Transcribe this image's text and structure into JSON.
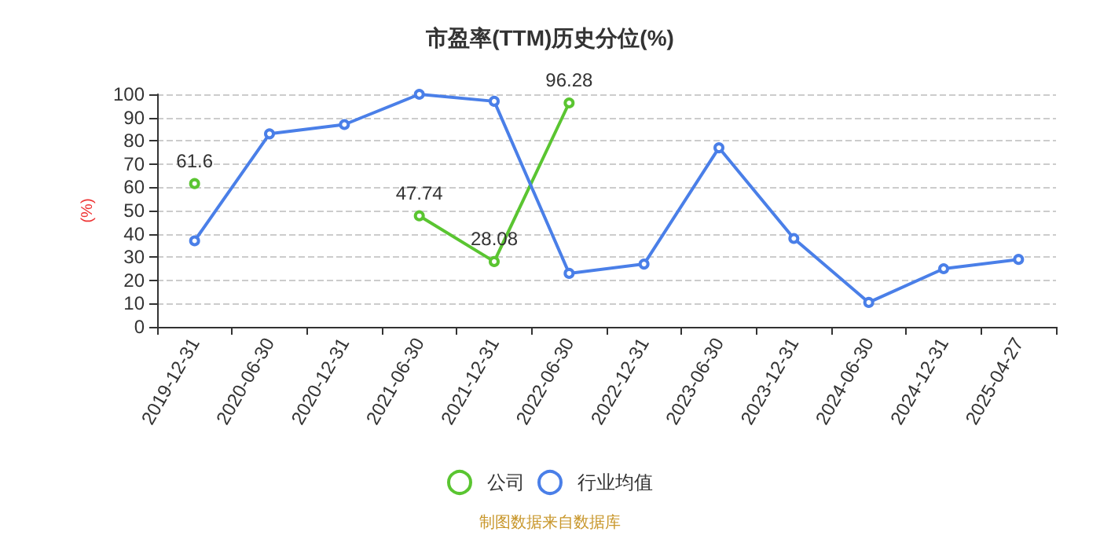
{
  "chart_data": {
    "type": "line",
    "title": "市盈率(TTM)历史分位(%)",
    "ylabel": "(%)",
    "categories": [
      "2019-12-31",
      "2020-06-30",
      "2020-12-31",
      "2021-06-30",
      "2021-12-31",
      "2022-06-30",
      "2022-12-31",
      "2023-06-30",
      "2023-12-31",
      "2024-06-30",
      "2024-12-31",
      "2025-04-27"
    ],
    "series": [
      {
        "name": "公司",
        "color": "#5ac531",
        "values": [
          61.6,
          null,
          null,
          47.74,
          28.08,
          96.28,
          null,
          null,
          null,
          null,
          null,
          null
        ],
        "value_labels": [
          "61.6",
          null,
          null,
          "47.74",
          "28.08",
          "96.28",
          null,
          null,
          null,
          null,
          null,
          null
        ]
      },
      {
        "name": "行业均值",
        "color": "#4a7fe8",
        "values": [
          37,
          83,
          87,
          100,
          97,
          23,
          27,
          77,
          38,
          10.5,
          25,
          29
        ]
      }
    ],
    "ylim": [
      0,
      100
    ],
    "yticks": [
      0,
      10,
      20,
      30,
      40,
      50,
      60,
      70,
      80,
      90,
      100
    ],
    "grid": "y",
    "legend": "bottom",
    "marker": "circle",
    "annotations": [
      "制图数据来自数据库"
    ]
  }
}
